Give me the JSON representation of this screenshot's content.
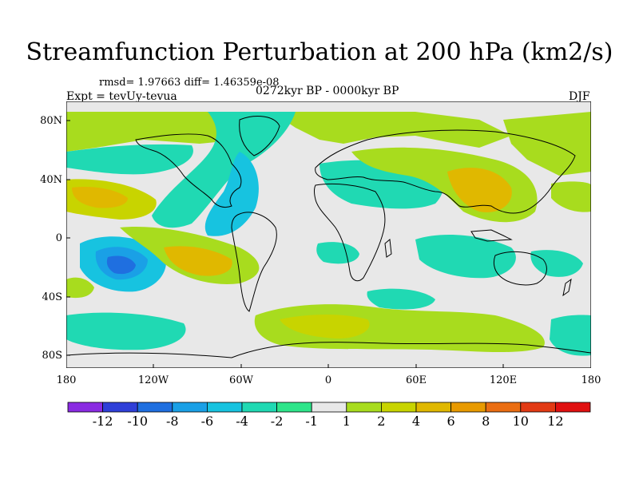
{
  "title": "Streamfunction Perturbation at 200 hPa (km2/s)",
  "stats_line": "rmsd= 1.97663 diff= 1.46359e-08",
  "experiment": "Expt = tevUy-tevua",
  "period": "0272kyr BP - 0000kyr BP",
  "season": "DJF",
  "map": {
    "lon_range": [
      -180,
      180
    ],
    "lat_range": [
      -90,
      90
    ],
    "lat_labels": [
      "80N",
      "40N",
      "0",
      "40S",
      "80S"
    ],
    "lat_label_values": [
      80,
      40,
      0,
      -40,
      -80
    ],
    "lon_labels": [
      "180",
      "120W",
      "60W",
      "0",
      "60E",
      "120E",
      "180"
    ],
    "lon_label_values": [
      -180,
      -120,
      -60,
      0,
      60,
      120,
      180
    ]
  },
  "colorbar": {
    "labels": [
      "-12",
      "-10",
      "-8",
      "-6",
      "-4",
      "-2",
      "-1",
      "1",
      "2",
      "4",
      "6",
      "8",
      "10",
      "12"
    ],
    "colors": [
      "#8a2be2",
      "#2f3fd8",
      "#1f6fe0",
      "#1aa0e6",
      "#17c3e0",
      "#20d9b3",
      "#2ee58a",
      "#e8e8e8",
      "#a8dc1e",
      "#c8d400",
      "#e0b800",
      "#e89a00",
      "#ea6d12",
      "#e23a14",
      "#e01010"
    ]
  },
  "colors": {
    "neutral": "#e8e8e8",
    "coast": "#000000"
  }
}
